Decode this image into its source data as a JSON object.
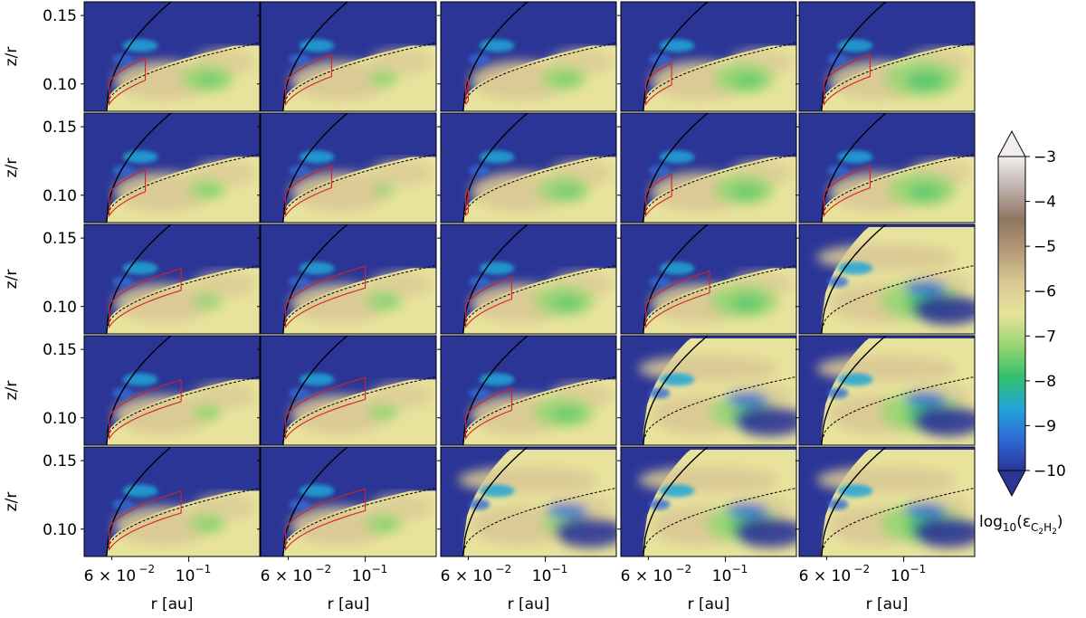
{
  "chart_data": {
    "type": "heatmap",
    "layout": {
      "rows": 5,
      "cols": 5,
      "shared_axes": true
    },
    "xlabel": "r [au]",
    "ylabel": "z/r",
    "xscale": "log",
    "ylim": [
      0.08,
      0.16
    ],
    "x_tick_labels": [
      "6 × 10",
      "−2",
      "10",
      "−1"
    ],
    "y_ticks": [
      0.1,
      0.15
    ],
    "y_tick_labels": [
      "0.10",
      "0.15"
    ],
    "colorbar": {
      "label_base": "log",
      "label_sub1": "10",
      "label_open": "(ε",
      "label_sub2": "C",
      "label_sub3": "2",
      "label_mid": "H",
      "label_sub4": "2",
      "label_close": ")",
      "min": -10,
      "max": -3,
      "ticks": [
        -3,
        -4,
        -5,
        -6,
        -7,
        -8,
        -9,
        -10
      ],
      "tick_labels": [
        "−3",
        "−4",
        "−5",
        "−6",
        "−7",
        "−8",
        "−9",
        "−10"
      ],
      "extend": "both",
      "colormap": "gist_earth_r-like",
      "stops": [
        "#2b3596",
        "#2e6bd6",
        "#21a6d6",
        "#35c06a",
        "#9ad674",
        "#e8e39c",
        "#d9c894",
        "#b49a78",
        "#8e7560",
        "#bfb0ad",
        "#f2eeee"
      ]
    },
    "series": [
      {
        "name": "panel",
        "note": "row-major panels, 5 rows × 5 columns"
      }
    ],
    "panel_background_level": -6,
    "empty_region_level": -10,
    "contours": {
      "solid_black": "upper boundary",
      "dashed_black": "lower boundary",
      "red": "emitting region"
    }
  }
}
